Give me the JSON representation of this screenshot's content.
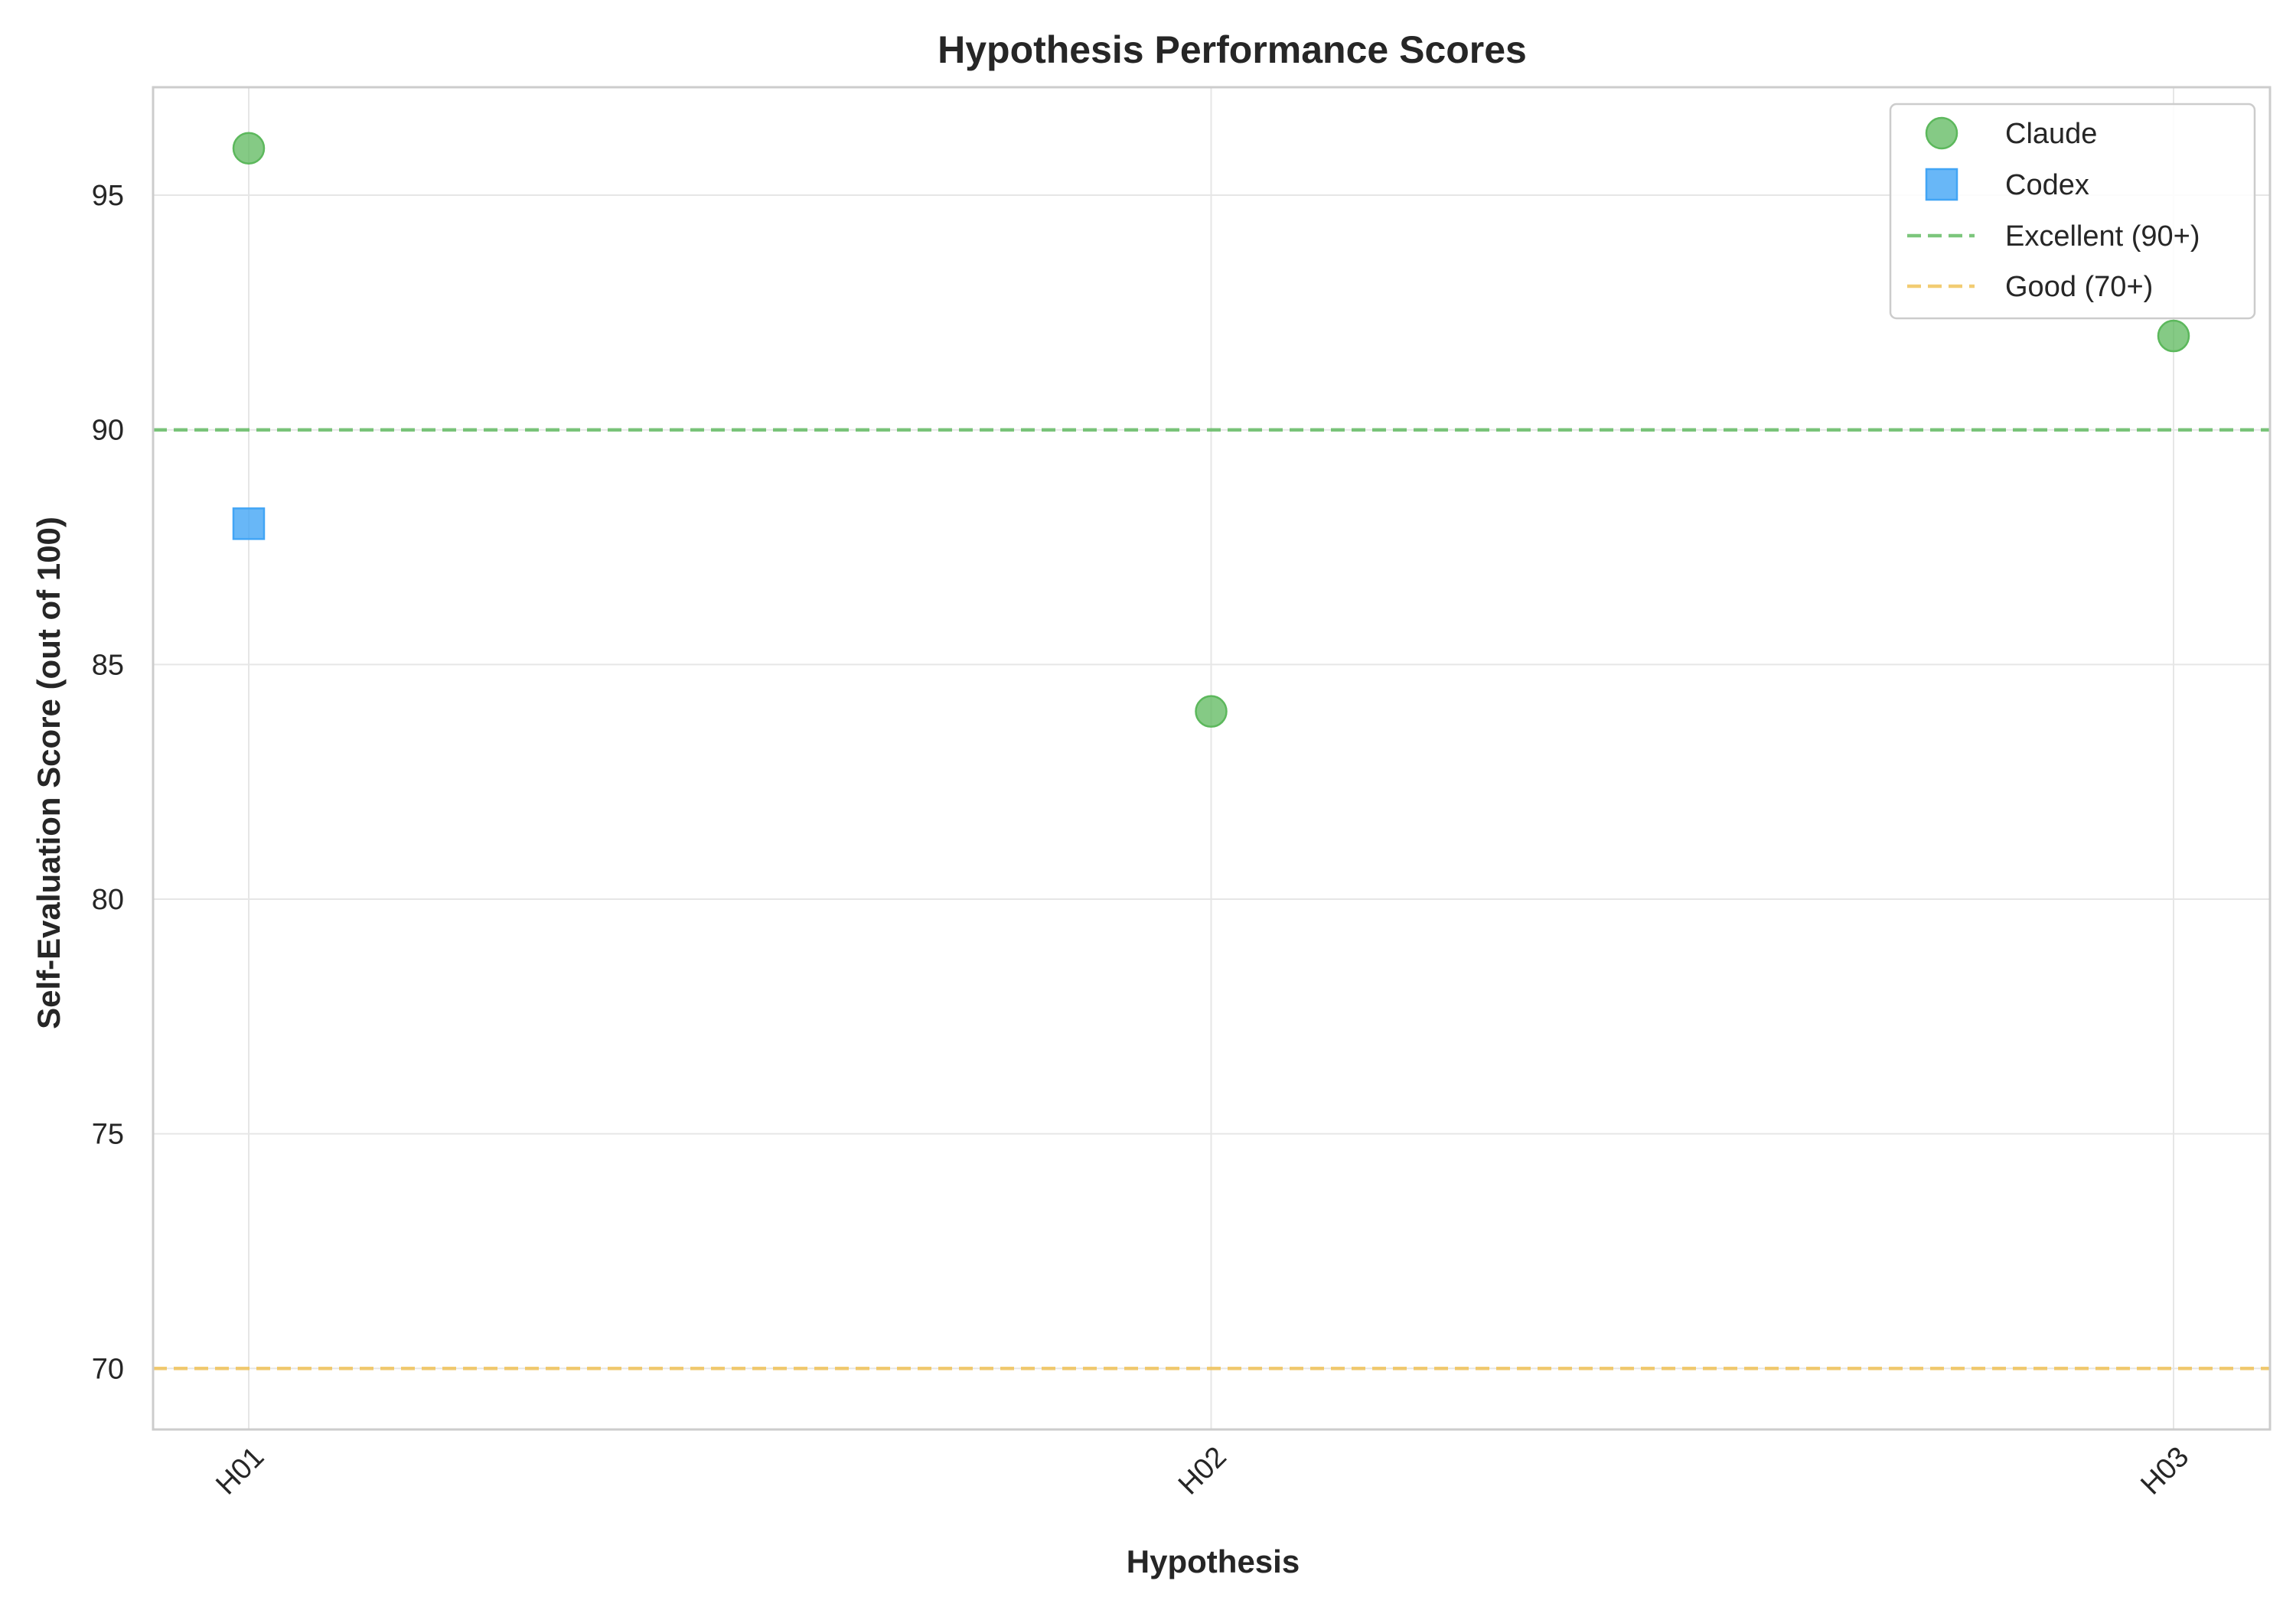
{
  "chart_data": {
    "type": "scatter",
    "title": "Hypothesis Performance Scores",
    "xlabel": "Hypothesis",
    "ylabel": "Self-Evaluation Score (out of 100)",
    "categories": [
      "H01",
      "H02",
      "H03"
    ],
    "ylim": [
      68.7,
      97.3
    ],
    "yticks": [
      70,
      75,
      80,
      85,
      90,
      95
    ],
    "grid": true,
    "legend_position": "top-right",
    "series": [
      {
        "name": "Claude",
        "marker": "circle",
        "color": "#5cb85c",
        "points": [
          {
            "x": "H01",
            "y": 96
          },
          {
            "x": "H02",
            "y": 84
          },
          {
            "x": "H03",
            "y": 92
          }
        ]
      },
      {
        "name": "Codex",
        "marker": "square",
        "color": "#42a5f5",
        "points": [
          {
            "x": "H01",
            "y": 88
          }
        ]
      }
    ],
    "reference_lines": [
      {
        "name": "Excellent (90+)",
        "y": 90,
        "color": "#5cb85c",
        "style": "dashed"
      },
      {
        "name": "Good (70+)",
        "y": 70,
        "color": "#f0c050",
        "style": "dashed"
      }
    ]
  }
}
